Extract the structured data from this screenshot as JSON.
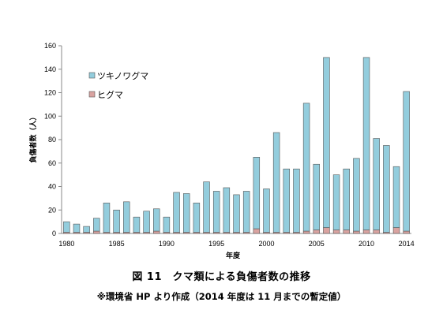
{
  "chart_data": {
    "type": "bar",
    "stacked": true,
    "x": [
      1980,
      1981,
      1982,
      1983,
      1984,
      1985,
      1986,
      1987,
      1988,
      1989,
      1990,
      1991,
      1992,
      1993,
      1994,
      1995,
      1996,
      1997,
      1998,
      1999,
      2000,
      2001,
      2002,
      2003,
      2004,
      2005,
      2006,
      2007,
      2008,
      2009,
      2010,
      2011,
      2012,
      2013,
      2014
    ],
    "xticks": [
      "1980",
      "1985",
      "1990",
      "1995",
      "2000",
      "2005",
      "2010",
      "2014"
    ],
    "xtick_values": [
      1980,
      1985,
      1990,
      1995,
      2000,
      2005,
      2010,
      2014
    ],
    "series": [
      {
        "name": "ヒグマ",
        "color": "#d9a3a0",
        "values": [
          1,
          1,
          1,
          2,
          1,
          1,
          1,
          1,
          1,
          2,
          1,
          1,
          1,
          1,
          1,
          1,
          1,
          1,
          1,
          4,
          1,
          1,
          1,
          1,
          2,
          3,
          5,
          3,
          3,
          2,
          3,
          3,
          1,
          5,
          2
        ]
      },
      {
        "name": "ツキノワグマ",
        "color": "#93cddd",
        "values": [
          9,
          7,
          5,
          11,
          25,
          19,
          26,
          13,
          18,
          19,
          13,
          34,
          33,
          25,
          43,
          35,
          38,
          32,
          35,
          61,
          37,
          85,
          54,
          54,
          109,
          56,
          145,
          47,
          52,
          62,
          147,
          78,
          74,
          52,
          119
        ]
      }
    ],
    "totals": [
      10,
      8,
      6,
      13,
      26,
      20,
      27,
      14,
      19,
      21,
      14,
      35,
      34,
      26,
      44,
      36,
      39,
      33,
      36,
      65,
      38,
      86,
      55,
      55,
      111,
      59,
      150,
      50,
      55,
      64,
      150,
      81,
      75,
      57,
      121
    ],
    "ylim": [
      0,
      160
    ],
    "yticks": [
      0,
      20,
      40,
      60,
      80,
      100,
      120,
      140,
      160
    ],
    "xlabel": "年度",
    "ylabel": "負傷者数（人）",
    "legend": [
      "ツキノワグマ",
      "ヒグマ"
    ],
    "legend_position": "top-left",
    "grid": false
  },
  "caption": {
    "title": "図 11　クマ類による負傷者数の推移",
    "note": "※環境省 HP より作成（2014 年度は 11 月までの暫定値）"
  }
}
